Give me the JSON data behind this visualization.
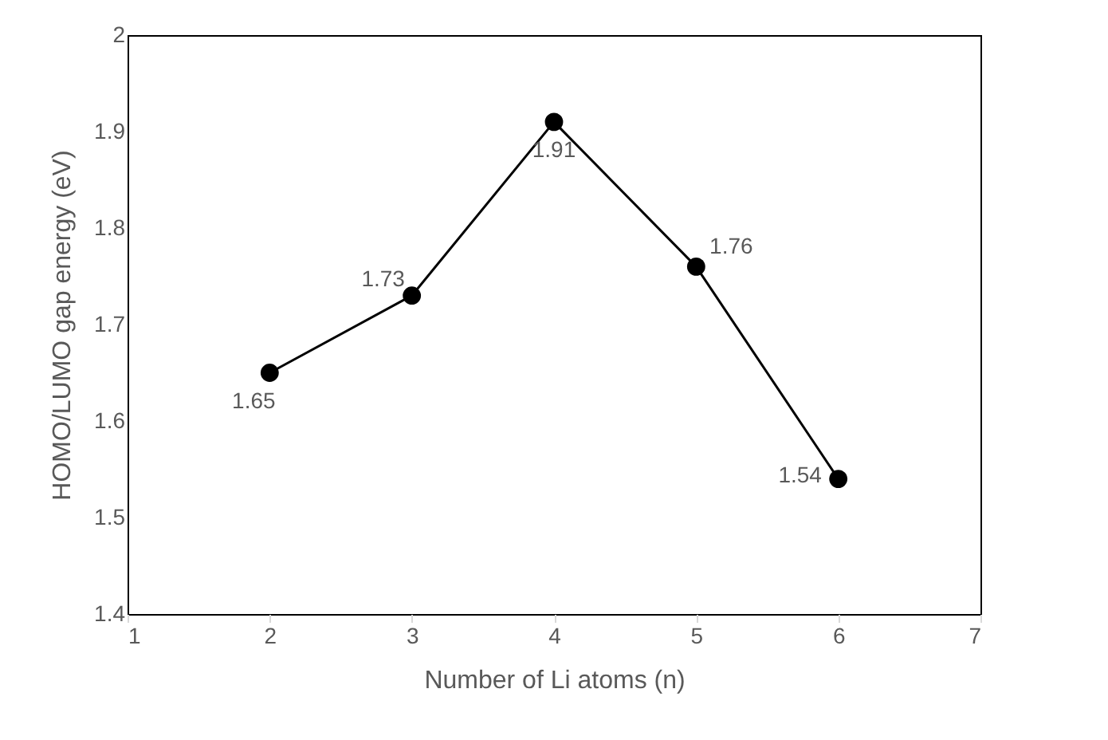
{
  "chart_data": {
    "type": "line",
    "xlabel": "Number of Li atoms (n)",
    "ylabel": "HOMO/LUMO gap energy (eV)",
    "x": [
      2,
      3,
      4,
      5,
      6
    ],
    "series": [
      {
        "color": "#000000",
        "values": [
          1.65,
          1.73,
          1.91,
          1.76,
          1.54
        ]
      }
    ],
    "xlim": [
      1,
      7
    ],
    "xticks": [
      1,
      2,
      3,
      4,
      5,
      6,
      7
    ],
    "ylim": [
      1.4,
      2
    ],
    "yticks": [
      1.4,
      1.5,
      1.6,
      1.7,
      1.8,
      1.9,
      2
    ],
    "data_labels": true,
    "marker": "circle",
    "line_style": "solid",
    "grid": false
  }
}
